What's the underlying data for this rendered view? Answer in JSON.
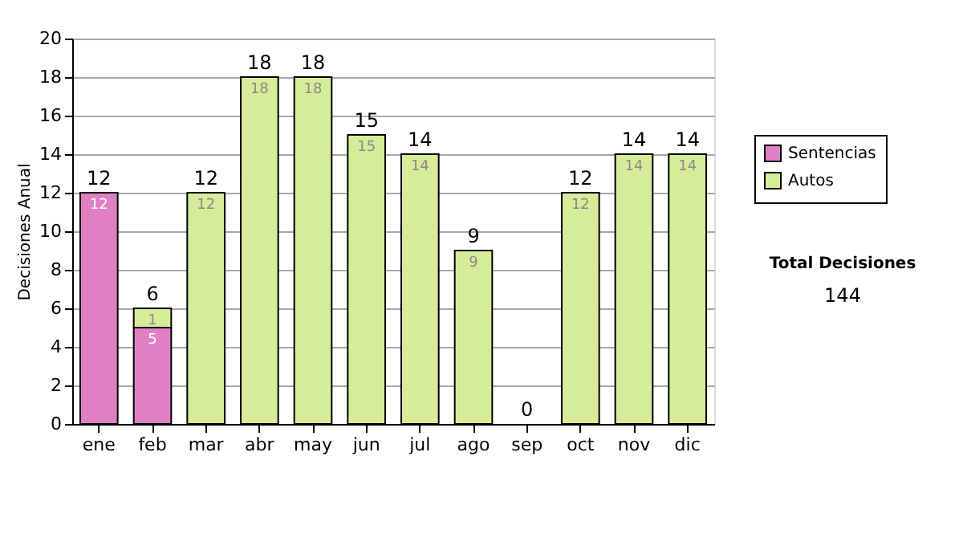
{
  "chart_data": {
    "type": "bar",
    "stacked": true,
    "ylabel": "Decisiones Anual",
    "categories": [
      "ene",
      "feb",
      "mar",
      "abr",
      "may",
      "jun",
      "jul",
      "ago",
      "sep",
      "oct",
      "nov",
      "dic"
    ],
    "series": [
      {
        "name": "Sentencias",
        "color": "#df7fc4",
        "values": [
          12,
          5,
          0,
          0,
          0,
          0,
          0,
          0,
          0,
          0,
          0,
          0
        ],
        "value_labels": [
          "12",
          "5",
          null,
          null,
          null,
          null,
          null,
          null,
          null,
          null,
          null,
          null
        ]
      },
      {
        "name": "Autos",
        "color": "#d6ec99",
        "values": [
          0,
          1,
          12,
          18,
          18,
          15,
          14,
          9,
          0,
          12,
          14,
          14
        ],
        "value_labels": [
          null,
          "1",
          "12",
          "18",
          "18",
          "15",
          "14",
          "9",
          null,
          "12",
          "14",
          "14"
        ]
      }
    ],
    "totals": [
      "12",
      "6",
      "12",
      "18",
      "18",
      "15",
      "14",
      "9",
      "0",
      "12",
      "14",
      "14"
    ],
    "ylim": [
      0,
      20
    ],
    "yticks": [
      0,
      2,
      4,
      6,
      8,
      10,
      12,
      14,
      16,
      18,
      20
    ],
    "grid": "y",
    "legend": "right",
    "annotations": [
      "Total Decisiones",
      "144"
    ]
  }
}
